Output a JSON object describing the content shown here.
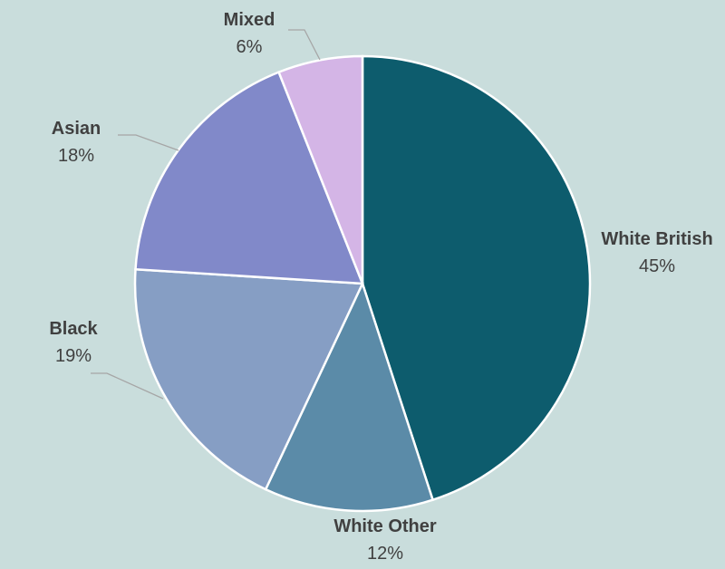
{
  "chart_data": {
    "type": "pie",
    "title": "",
    "background": "#c9dddc",
    "start_angle_deg": 0,
    "direction": "clockwise",
    "slices": [
      {
        "label": "White British",
        "value": 45,
        "display": "45%",
        "color": "#0d5c6d"
      },
      {
        "label": "White Other",
        "value": 12,
        "display": "12%",
        "color": "#5b8ba8"
      },
      {
        "label": "Black",
        "value": 19,
        "display": "19%",
        "color": "#869ec4"
      },
      {
        "label": "Asian",
        "value": 18,
        "display": "18%",
        "color": "#8189c9"
      },
      {
        "label": "Mixed",
        "value": 6,
        "display": "6%",
        "color": "#d4b5e6"
      }
    ],
    "legend": "none"
  }
}
